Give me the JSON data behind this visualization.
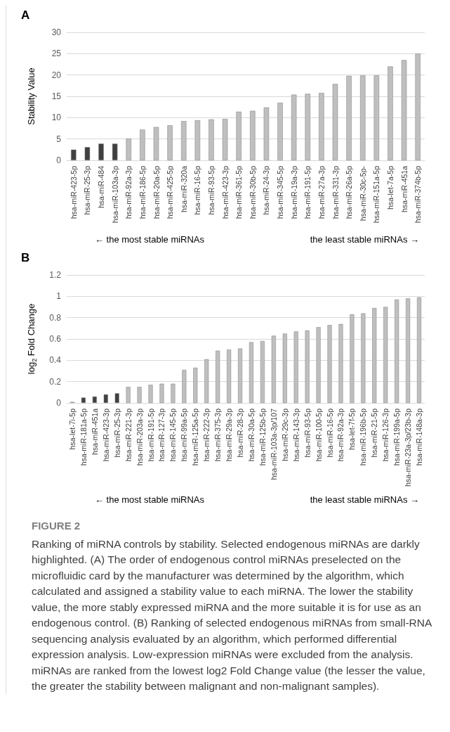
{
  "chart_data": [
    {
      "type": "bar",
      "title": "A",
      "ylabel": "Stability Value",
      "categories": [
        "hsa-miR-423-5p",
        "hsa-miR-25-3p",
        "hsa-miR-484",
        "hsa-miR-103a-3p",
        "hsa-miR-92a-3p",
        "hsa-miR-186-5p",
        "hsa-miR-20a-5p",
        "hsa-miR-425-5p",
        "hsa-miR-320a",
        "hsa-miR-16-5p",
        "hsa-miR-93-5p",
        "hsa-miR-423-3p",
        "hsa-miR-361-5p",
        "hsa-miR-30b-5p",
        "hsa-miR-24-3p",
        "hsa-miR-345-5p",
        "hsa-miR-19a-3p",
        "hsa-miR-191-5p",
        "hsa-miR-27a-3p",
        "hsa-miR-331-3p",
        "hsa-miR-26a-5p",
        "hsa-miR-30c-5p-",
        "hsa-miR-151a-5p",
        "hsa-let-7a-5p",
        "hsa-miR-451a",
        "hsa-miR-374b-5p"
      ],
      "values": [
        2.5,
        3.1,
        3.9,
        3.9,
        5.1,
        7.2,
        7.8,
        8.2,
        9.2,
        9.4,
        9.6,
        9.7,
        11.4,
        11.6,
        12.4,
        13.5,
        15.4,
        15.6,
        15.8,
        17.9,
        19.8,
        19.9,
        19.9,
        22.0,
        23.5,
        25.0
      ],
      "colors": [
        "#404040",
        "#404040",
        "#404040",
        "#404040",
        "#bfbfbf",
        "#bfbfbf",
        "#bfbfbf",
        "#bfbfbf",
        "#bfbfbf",
        "#bfbfbf",
        "#bfbfbf",
        "#bfbfbf",
        "#bfbfbf",
        "#bfbfbf",
        "#bfbfbf",
        "#bfbfbf",
        "#bfbfbf",
        "#bfbfbf",
        "#bfbfbf",
        "#bfbfbf",
        "#bfbfbf",
        "#bfbfbf",
        "#bfbfbf",
        "#bfbfbf",
        "#bfbfbf",
        "#bfbfbf"
      ],
      "ylim": [
        0,
        30
      ],
      "yticks": [
        0,
        5,
        10,
        15,
        20,
        25,
        30
      ],
      "grid": "y",
      "annotations": [
        "← the most stable miRNAs",
        "the least stable miRNAs →"
      ]
    },
    {
      "type": "bar",
      "title": "B",
      "ylabel": "log$_{2}$ Fold Change",
      "categories": [
        "hsa-let-7i-5p",
        "hsa-miR-181a-5p",
        "hsa-miR-451a",
        "hsa-miR-423-3p",
        "hsa-miR-25-3p",
        "hsa-miR-221-3p",
        "hsa-miR-203a-3p",
        "hsa-miR-191-5p",
        "hsa-miR-127-3p",
        "hsa-miR-145-5p",
        "hsa-miR-99a-5p",
        "hsa-miR-125a-5p",
        "hsa-miR-222-3p",
        "hsa-miR-375-3p",
        "hsa-miR-29a-3p",
        "hsa-miR-28-3p",
        "hsa-miR-30a-5p",
        "hsa-miR-125b-5p",
        "hsa-miR-103a-3p/107",
        "hsa-miR-29c-3p",
        "hsa-miR-143-3p",
        "hsa-miR-93-5p",
        "hsa-miR-100-5p",
        "hsa-miR-16-5p",
        "hsa-miR-92a-3p",
        "hsa-let-7f-5p",
        "hsa-miR-196b-5p",
        "hsa-miR-21-5p",
        "hsa-miR-126-3p",
        "hsa-miR-199a-5p",
        "hsa-miR-23a-3p/23b-3p",
        "hsa-miR-148a-3p"
      ],
      "values": [
        0.01,
        0.05,
        0.06,
        0.08,
        0.09,
        0.15,
        0.15,
        0.17,
        0.18,
        0.18,
        0.31,
        0.33,
        0.41,
        0.49,
        0.5,
        0.51,
        0.57,
        0.58,
        0.63,
        0.65,
        0.67,
        0.68,
        0.71,
        0.73,
        0.74,
        0.83,
        0.84,
        0.89,
        0.9,
        0.97,
        0.98,
        0.99
      ],
      "colors": [
        "#bfbfbf",
        "#404040",
        "#404040",
        "#404040",
        "#404040",
        "#bfbfbf",
        "#bfbfbf",
        "#bfbfbf",
        "#bfbfbf",
        "#bfbfbf",
        "#bfbfbf",
        "#bfbfbf",
        "#bfbfbf",
        "#bfbfbf",
        "#bfbfbf",
        "#bfbfbf",
        "#bfbfbf",
        "#bfbfbf",
        "#bfbfbf",
        "#bfbfbf",
        "#bfbfbf",
        "#bfbfbf",
        "#bfbfbf",
        "#bfbfbf",
        "#bfbfbf",
        "#bfbfbf",
        "#bfbfbf",
        "#bfbfbf",
        "#bfbfbf",
        "#bfbfbf",
        "#bfbfbf",
        "#bfbfbf"
      ],
      "ylim": [
        0,
        1.2
      ],
      "yticks": [
        0,
        0.2,
        0.4,
        0.6,
        0.8,
        1,
        1.2
      ],
      "grid": "y",
      "annotations": [
        "← the most stable miRNAs",
        "the least stable miRNAs →",
        "FIGURE 2",
        "Ranking of miRNA controls by stability. Selected endogenous miRNAs are darkly highlighted. (A) The order of endogenous control miRNAs preselected on the microfluidic card by the manufacturer was determined by the algorithm, which calculated and assigned a stability value to each miRNA. The lower the stability value, the more stably expressed miRNA and the more suitable it is for use as an endogenous control. (B) Ranking of selected endogenous miRNAs from small-RNA sequencing analysis evaluated by an algorithm, which performed differential expression analysis. Low-expression miRNAs were excluded from the analysis. miRNAs are ranked from the lowest log2 Fold Change value (the lesser the value, the greater the stability between malignant and non-malignant samples)."
      ]
    }
  ]
}
